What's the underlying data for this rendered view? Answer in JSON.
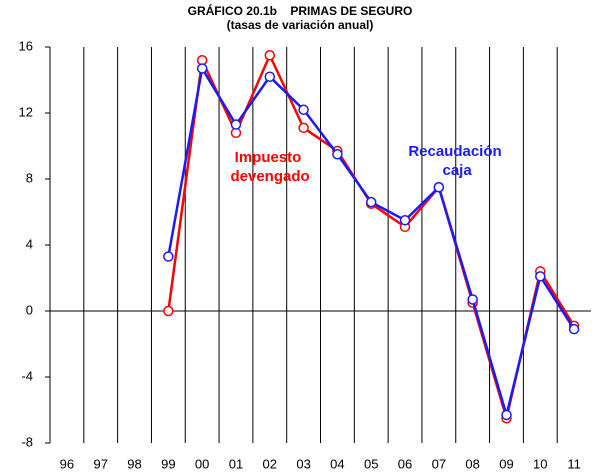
{
  "chart_data": {
    "type": "line",
    "title": "GRÁFICO 20.1b    PRIMAS DE SEGURO",
    "subtitle": "(tasas de variación anual)",
    "categories": [
      "96",
      "97",
      "98",
      "99",
      "00",
      "01",
      "02",
      "03",
      "04",
      "05",
      "06",
      "07",
      "08",
      "09",
      "10",
      "11"
    ],
    "series": [
      {
        "name": "Impuesto devengado",
        "color": "#ff0000",
        "values": [
          null,
          null,
          null,
          0,
          15.2,
          10.8,
          15.5,
          11.1,
          9.7,
          6.5,
          5.1,
          7.5,
          0.5,
          -6.5,
          2.4,
          -0.9
        ]
      },
      {
        "name": "Recaudación caja",
        "color": "#1a1aff",
        "values": [
          null,
          null,
          null,
          3.3,
          14.7,
          11.3,
          14.2,
          12.2,
          9.5,
          6.6,
          5.5,
          7.5,
          0.7,
          -6.3,
          2.1,
          -1.1
        ]
      }
    ],
    "ylim": [
      -8,
      16
    ],
    "yticks": [
      -8,
      -4,
      0,
      4,
      8,
      12,
      16
    ]
  }
}
